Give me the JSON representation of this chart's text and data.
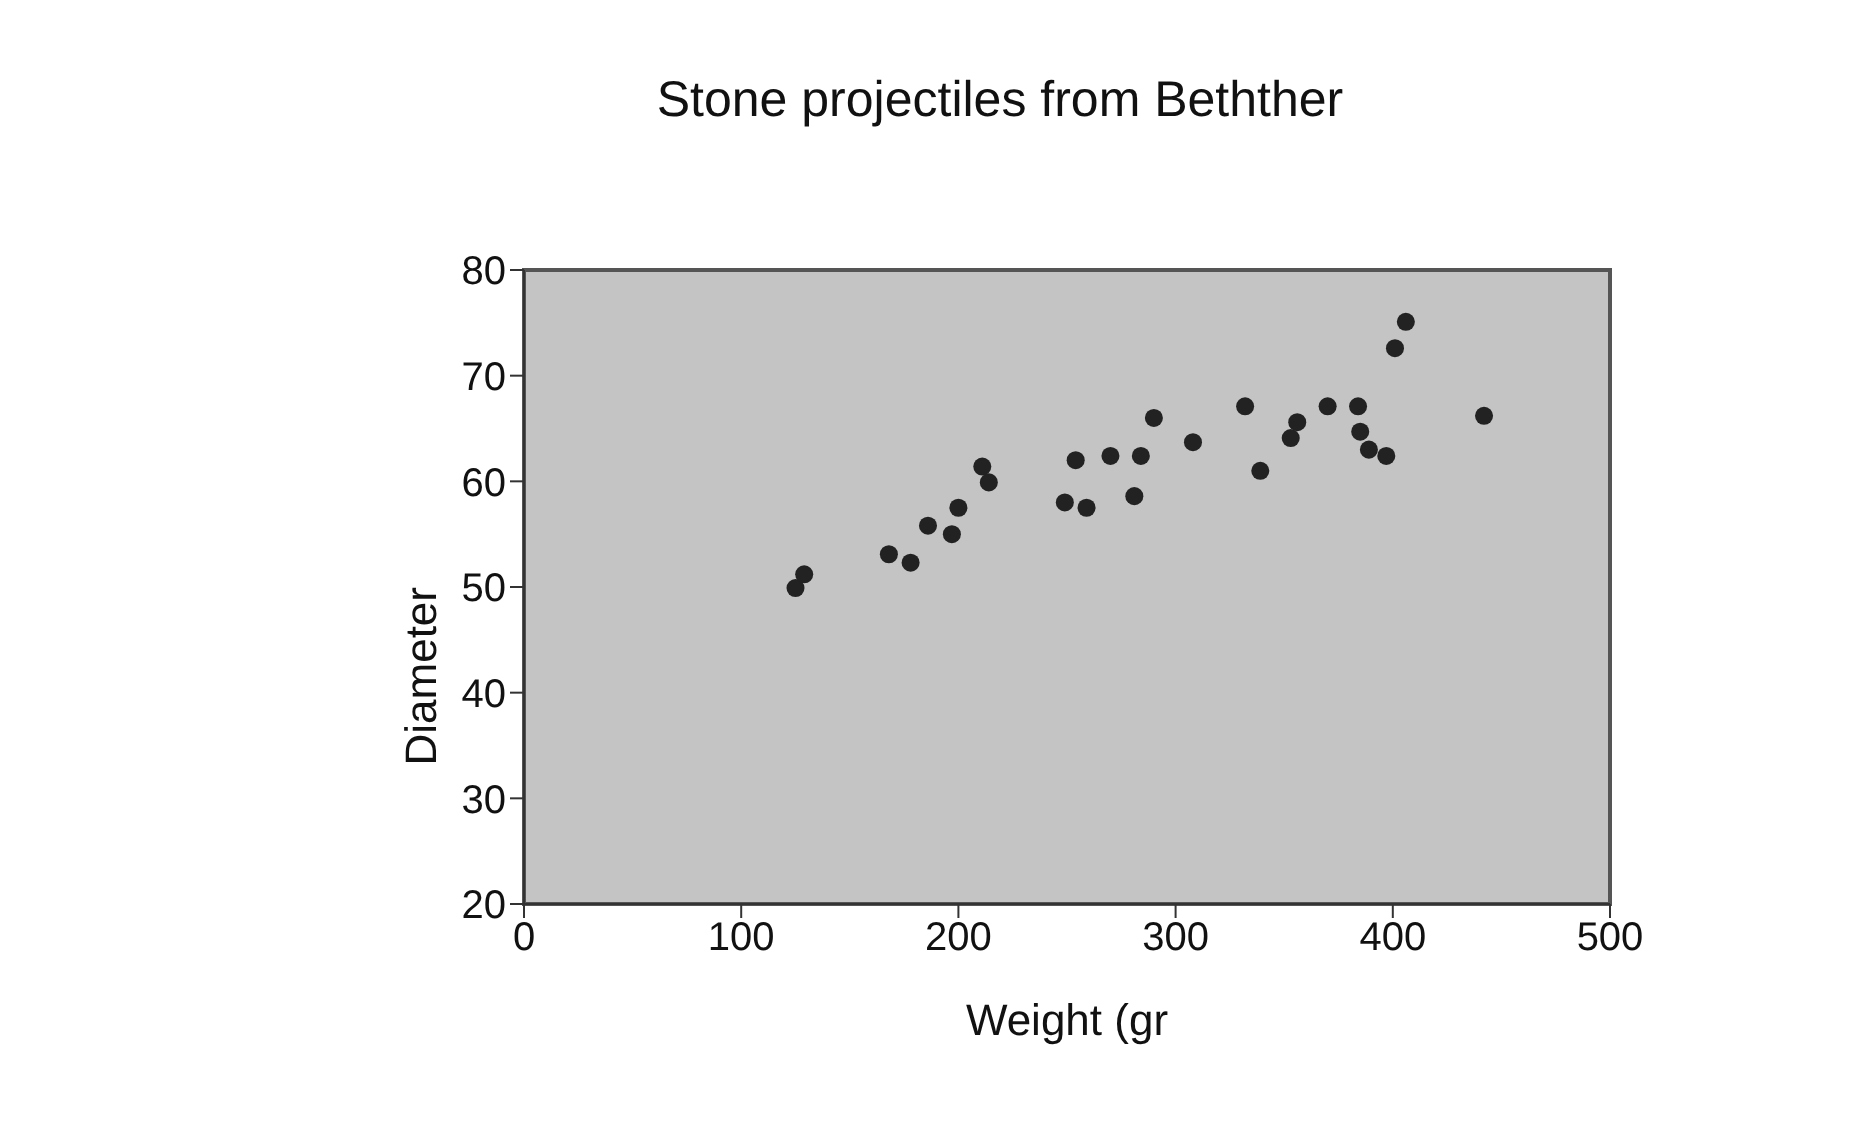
{
  "chart_data": {
    "type": "scatter",
    "title": "Stone projectiles from Bethther",
    "xlabel": "Weight  (gr",
    "ylabel": "Diameter",
    "x": [
      125,
      129,
      168,
      178,
      186,
      197,
      200,
      211,
      214,
      249,
      259,
      254,
      270,
      284,
      281,
      290,
      308,
      332,
      339,
      353,
      356,
      370,
      384,
      385,
      389,
      397,
      401,
      406,
      442
    ],
    "values": [
      49.9,
      51.2,
      53.1,
      52.3,
      55.8,
      55.0,
      57.5,
      61.4,
      59.9,
      58.0,
      57.5,
      62.0,
      62.4,
      62.4,
      58.6,
      66.0,
      63.7,
      67.1,
      61.0,
      64.1,
      65.6,
      67.1,
      67.1,
      64.7,
      63.0,
      62.4,
      72.6,
      75.1,
      66.2
    ],
    "color": "#222222",
    "marker": "circle",
    "legend": false,
    "xlim": [
      0,
      500
    ],
    "xticks": [
      0,
      100,
      200,
      300,
      400,
      500
    ],
    "ylim": [
      20,
      80
    ],
    "yticks": [
      20,
      30,
      40,
      50,
      60,
      70,
      80
    ]
  }
}
